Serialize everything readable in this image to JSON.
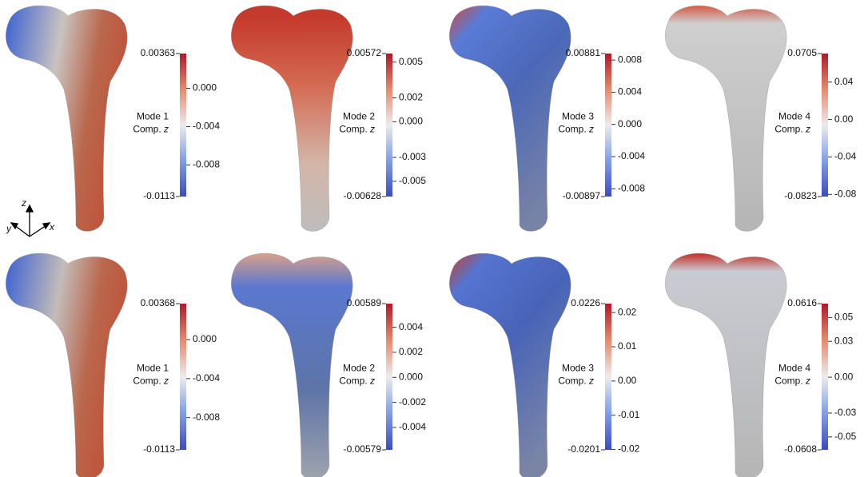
{
  "panels": [
    {
      "mode": "Mode 1",
      "comp": "Comp.",
      "axis": "z",
      "max": 0.00363,
      "min": -0.0113,
      "ticks": [
        {
          "value": 0,
          "label": "0.000"
        },
        -0.004,
        -0.008
      ]
    },
    {
      "mode": "Mode 2",
      "comp": "Comp.",
      "axis": "z",
      "max": 0.00572,
      "min": -0.00628,
      "ticks": [
        0.005,
        0.002,
        {
          "value": 0,
          "label": "0.000"
        },
        -0.003,
        -0.005
      ]
    },
    {
      "mode": "Mode 3",
      "comp": "Comp.",
      "axis": "z",
      "max": 0.00881,
      "min": -0.00897,
      "ticks": [
        0.008,
        0.004,
        {
          "value": 0,
          "label": "0.000"
        },
        -0.004,
        -0.008
      ]
    },
    {
      "mode": "Mode 4",
      "comp": "Comp.",
      "axis": "z",
      "max": 0.0705,
      "min": -0.0823,
      "ticks": [
        0.04,
        {
          "value": 0,
          "label": "0.00"
        },
        -0.04,
        -0.08
      ]
    },
    {
      "mode": "Mode 1",
      "comp": "Comp.",
      "axis": "z",
      "max": 0.00368,
      "min": -0.0113,
      "ticks": [
        {
          "value": 0,
          "label": "0.000"
        },
        -0.004,
        -0.008
      ]
    },
    {
      "mode": "Mode 2",
      "comp": "Comp.",
      "axis": "z",
      "max": 0.00589,
      "min": -0.00579,
      "ticks": [
        0.004,
        0.002,
        {
          "value": 0,
          "label": "0.000"
        },
        -0.002,
        -0.004
      ]
    },
    {
      "mode": "Mode 3",
      "comp": "Comp.",
      "axis": "z",
      "max": 0.0226,
      "min": -0.0201,
      "ticks": [
        0.02,
        0.01,
        {
          "value": 0,
          "label": "0.00"
        },
        -0.01,
        -0.02
      ]
    },
    {
      "mode": "Mode 4",
      "comp": "Comp.",
      "axis": "z",
      "max": 0.0616,
      "min": -0.0608,
      "ticks": [
        0.05,
        0.03,
        {
          "value": 0,
          "label": "0.00"
        },
        -0.03,
        -0.05
      ]
    }
  ],
  "triad": {
    "z": "z",
    "y": "y",
    "x": "x"
  }
}
